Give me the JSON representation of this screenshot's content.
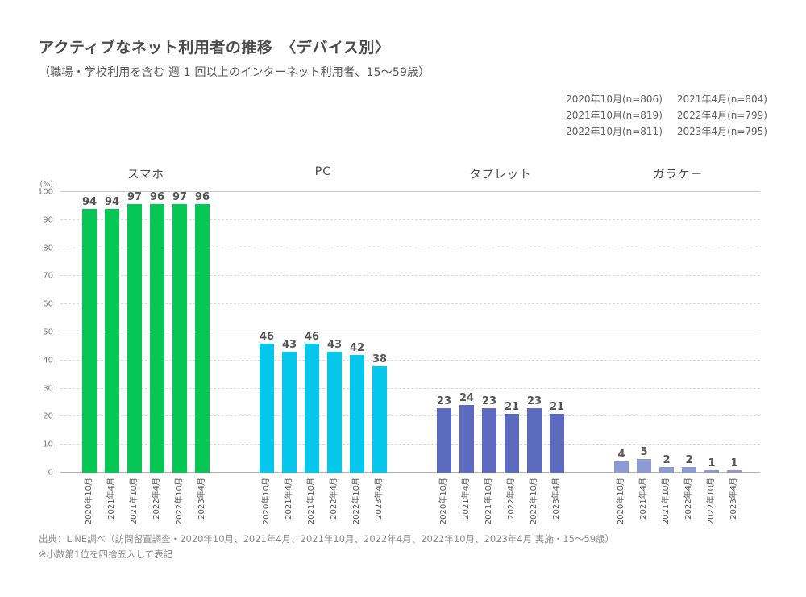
{
  "title": "アクティブなネット利用者の推移　〈デバイス別〉",
  "subtitle": "（職場・学校利用を含む 週 1 回以上のインターネット利用者、15〜59歳）",
  "sample_sizes": [
    "2020年10月(n=806)",
    "2021年4月(n=804)",
    "2021年10月(n=819)",
    "2022年4月(n=799)",
    "2022年10月(n=811)",
    "2023年4月(n=795)"
  ],
  "chart_data": {
    "type": "bar",
    "unit_label": "(%)",
    "ylim": [
      0,
      100
    ],
    "ytick_step": 10,
    "grid": "on",
    "categories": [
      "2020年10月",
      "2021年4月",
      "2021年10月",
      "2022年4月",
      "2022年10月",
      "2023年4月"
    ],
    "series": [
      {
        "name": "スマホ",
        "color": "#06C755",
        "values": [
          94,
          94,
          97,
          96,
          97,
          96
        ]
      },
      {
        "name": "PC",
        "color": "#04C7EB",
        "values": [
          46,
          43,
          46,
          43,
          42,
          38
        ]
      },
      {
        "name": "タブレット",
        "color": "#5C6BC0",
        "values": [
          23,
          24,
          23,
          21,
          23,
          21
        ]
      },
      {
        "name": "ガラケー",
        "color": "#8D9AD5",
        "values": [
          4,
          5,
          2,
          2,
          1,
          1
        ]
      }
    ]
  },
  "source": "出典：LINE調べ（訪問留置調査・2020年10月、2021年4月、2021年10月、2022年4月、2022年10月、2023年4月 実施・15〜59歳）",
  "note": "※小数第1位を四捨五入して表記"
}
